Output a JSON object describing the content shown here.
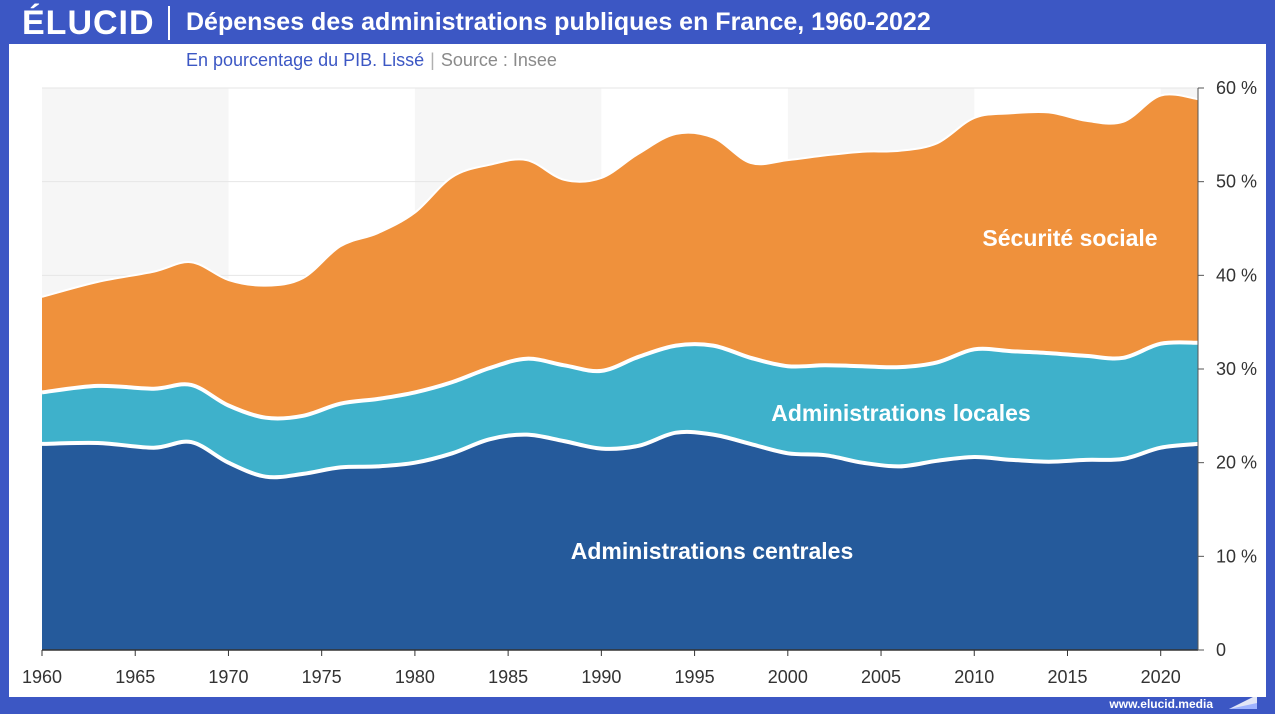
{
  "brand": {
    "logo": "ÉLUCID",
    "url": "www.elucid.media"
  },
  "colors": {
    "brand_blue": "#3c57c4",
    "centrales": "#255a9b",
    "locales": "#3eb1cb",
    "securite": "#ef913c"
  },
  "chart_data": {
    "type": "area",
    "stacked": true,
    "title": "Dépenses des administrations publiques en France, 1960-2022",
    "subtitle": "En pourcentage du PIB. Lissé",
    "source": "Source : Insee",
    "xlabel": "",
    "ylabel": "",
    "xlim": [
      1960,
      2022
    ],
    "ylim": [
      0,
      60
    ],
    "x_ticks": [
      "1960",
      "1965",
      "1970",
      "1975",
      "1980",
      "1985",
      "1990",
      "1995",
      "2000",
      "2005",
      "2010",
      "2015",
      "2020"
    ],
    "y_ticks": [
      "0",
      "10 %",
      "20 %",
      "30 %",
      "40 %",
      "50 %",
      "60 %"
    ],
    "x": [
      1960,
      1963,
      1966,
      1968,
      1970,
      1972,
      1974,
      1976,
      1978,
      1980,
      1982,
      1984,
      1986,
      1988,
      1990,
      1992,
      1994,
      1996,
      1998,
      2000,
      2002,
      2004,
      2006,
      2008,
      2010,
      2012,
      2014,
      2016,
      2018,
      2020,
      2022
    ],
    "series": [
      {
        "name": "Administrations centrales",
        "values": [
          22,
          22.1,
          21.6,
          22.2,
          20,
          18.5,
          18.8,
          19.5,
          19.6,
          20,
          21,
          22.5,
          23,
          22.3,
          21.5,
          21.8,
          23.2,
          23,
          22,
          21,
          20.8,
          20,
          19.6,
          20.2,
          20.6,
          20.3,
          20.1,
          20.3,
          20.4,
          21.6,
          22
        ]
      },
      {
        "name": "Administrations locales",
        "values": [
          5.5,
          6.1,
          6.3,
          6.1,
          6.1,
          6.3,
          6.2,
          6.8,
          7.2,
          7.5,
          7.6,
          7.6,
          8.1,
          8.1,
          8.3,
          9.5,
          9.3,
          9.5,
          9.2,
          9.3,
          9.6,
          10.3,
          10.6,
          10.5,
          11.5,
          11.6,
          11.6,
          11.1,
          10.8,
          11.1,
          10.8
        ]
      },
      {
        "name": "Sécurité sociale",
        "values": [
          10.2,
          11.1,
          12.5,
          13.1,
          13.4,
          14.1,
          14.7,
          16.8,
          17.7,
          19.2,
          21.9,
          21.7,
          21.2,
          19.8,
          20.6,
          21.7,
          22.6,
          22.2,
          20.8,
          22,
          22.4,
          22.9,
          23.1,
          23.4,
          24.7,
          25.4,
          25.7,
          25.1,
          25.2,
          26.5,
          26
        ]
      }
    ],
    "series_labels": [
      "Administrations centrales",
      "Administrations locales",
      "Sécurité sociale"
    ]
  }
}
